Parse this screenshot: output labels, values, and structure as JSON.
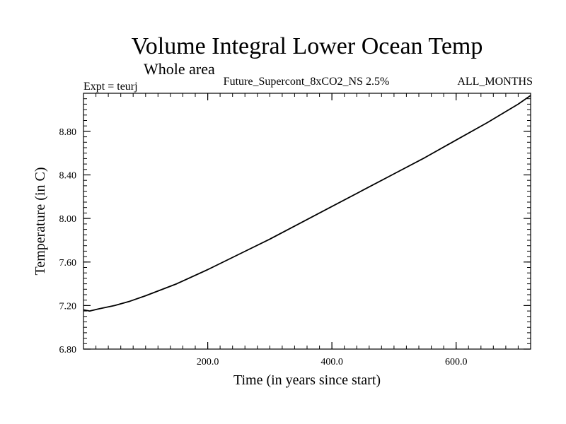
{
  "header": {
    "title": "Volume Integral Lower Ocean Temp",
    "subtitle": "Whole area",
    "expt": "Expt = teurj",
    "run": "Future_Supercont_8xCO2_NS 2.5%",
    "months": "ALL_MONTHS"
  },
  "chart_data": {
    "type": "line",
    "xlabel": "Time (in years since start)",
    "ylabel": "Temperature (in C)",
    "xlim": [
      0,
      720
    ],
    "ylim": [
      6.8,
      9.15
    ],
    "xticks": [
      200,
      400,
      600
    ],
    "xtick_labels": [
      "200.0",
      "400.0",
      "600.0"
    ],
    "yticks": [
      6.8,
      7.2,
      7.6,
      8.0,
      8.4,
      8.8
    ],
    "ytick_labels": [
      "6.80",
      "7.20",
      "7.60",
      "8.00",
      "8.40",
      "8.80"
    ],
    "grid": false,
    "series": [
      {
        "color": "#000000",
        "x": [
          0,
          10,
          25,
          50,
          75,
          100,
          150,
          200,
          250,
          300,
          350,
          400,
          450,
          500,
          550,
          600,
          650,
          700,
          720
        ],
        "y": [
          7.16,
          7.15,
          7.17,
          7.2,
          7.24,
          7.29,
          7.4,
          7.53,
          7.67,
          7.81,
          7.96,
          8.11,
          8.26,
          8.41,
          8.56,
          8.72,
          8.88,
          9.05,
          9.13
        ]
      }
    ]
  }
}
